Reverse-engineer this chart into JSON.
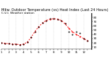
{
  "title": "Milw. Outdoor Temperature (vs) Heat Index (Last 24 Hours)",
  "subtitle": "C.U.I. Weather station",
  "bg_color": "#ffffff",
  "plot_bg_color": "#ffffff",
  "grid_color": "#aaaaaa",
  "line1_color": "#ff0000",
  "line2_color": "#000000",
  "x_labels": [
    "1",
    "",
    "2",
    "",
    "3",
    "",
    "4",
    "",
    "5",
    "",
    "6",
    "",
    "7",
    "",
    "8",
    "",
    "9",
    "",
    "10",
    "",
    "11",
    "",
    "12",
    "",
    "1"
  ],
  "y_ticks": [
    10,
    20,
    30,
    40,
    50,
    60,
    70,
    80
  ],
  "ylim": [
    5,
    90
  ],
  "xlim": [
    0,
    24
  ],
  "temp_x": [
    0,
    1,
    2,
    3,
    4,
    5,
    6,
    7,
    8,
    9,
    10,
    11,
    12,
    13,
    14,
    15,
    16,
    17,
    18,
    19,
    20,
    21,
    22,
    23
  ],
  "temp_y": [
    20,
    19,
    18,
    17,
    17,
    16,
    17,
    22,
    33,
    47,
    58,
    67,
    73,
    76,
    77,
    76,
    73,
    65,
    55,
    46,
    40,
    35,
    30,
    25
  ],
  "heat_x": [
    0,
    1,
    2,
    3,
    4,
    5,
    6,
    7,
    8,
    9,
    10,
    11,
    12,
    13,
    14,
    15,
    16,
    17,
    18,
    19,
    20,
    21,
    22,
    23
  ],
  "heat_y": [
    20,
    19,
    18,
    17,
    17,
    16,
    17,
    22,
    33,
    47,
    58,
    67,
    73,
    77,
    78,
    76,
    73,
    65,
    46,
    40,
    47,
    43,
    30,
    25
  ],
  "title_fontsize": 3.8,
  "subtitle_fontsize": 3.2,
  "tick_fontsize": 3.0,
  "line_width": 0.7,
  "marker_size": 1.0,
  "vgrid_positions": [
    2,
    4,
    6,
    8,
    10,
    12,
    14,
    16,
    18,
    20,
    22
  ]
}
